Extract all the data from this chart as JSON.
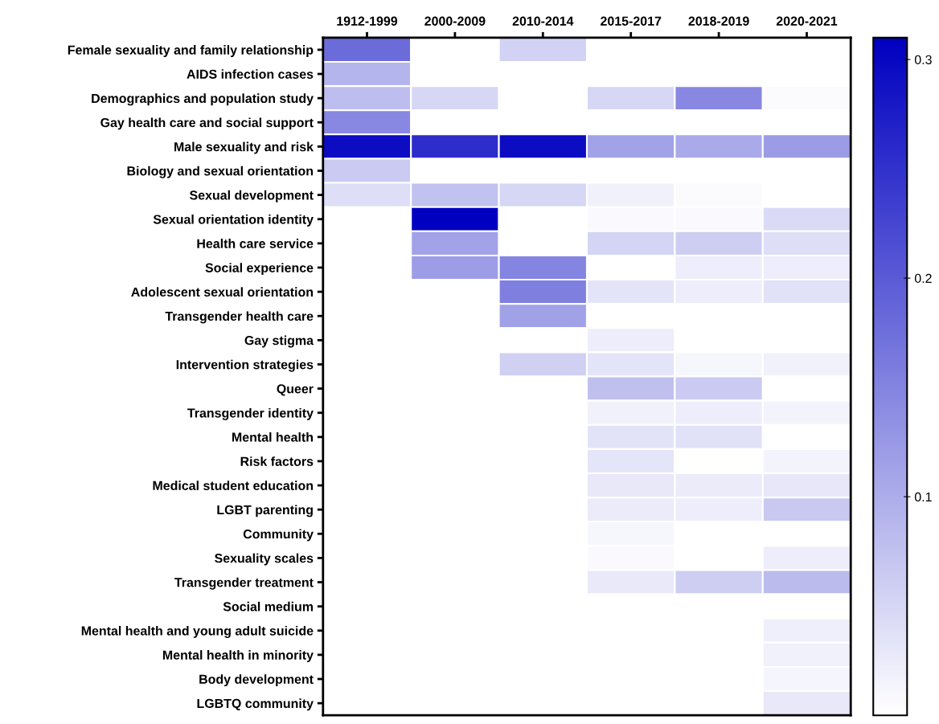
{
  "chart_data": {
    "type": "heatmap",
    "categories": [
      "1912-1999",
      "2000-2009",
      "2010-2014",
      "2015-2017",
      "2018-2019",
      "2020-2021"
    ],
    "y_categories": [
      "Female sexuality and family relationship",
      "AIDS infection cases",
      "Demographics and population study",
      "Gay health care and social support",
      "Male sexuality and risk",
      "Biology and sexual orientation",
      "Sexual development",
      "Sexual orientation identity",
      "Health care service",
      "Social experience",
      "Adolescent sexual orientation",
      "Transgender health care",
      "Gay stigma",
      "Intervention strategies",
      "Queer",
      "Transgender identity",
      "Mental health",
      "Risk factors",
      "Medical student education",
      "LGBT parenting",
      "Community",
      "Sexuality scales",
      "Transgender treatment",
      "Social medium",
      "Mental health and young adult suicide",
      "Mental health in minority",
      "Body development",
      "LGBTQ community"
    ],
    "cells": [
      [
        0.18,
        0,
        0.055,
        0,
        0,
        0
      ],
      [
        0.09,
        0,
        0,
        0,
        0,
        0
      ],
      [
        0.08,
        0.05,
        0,
        0.05,
        0.145,
        0.005
      ],
      [
        0.145,
        0,
        0,
        0,
        0,
        0
      ],
      [
        0.295,
        0.255,
        0.295,
        0.113,
        0.104,
        0.122
      ],
      [
        0.065,
        0,
        0,
        0,
        0,
        0
      ],
      [
        0.04,
        0.075,
        0.05,
        0.018,
        0.005,
        0
      ],
      [
        0,
        0.31,
        0,
        0.008,
        0.007,
        0.045
      ],
      [
        0,
        0.113,
        0,
        0.053,
        0.06,
        0.04
      ],
      [
        0,
        0.12,
        0.15,
        0,
        0.022,
        0.022
      ],
      [
        0,
        0,
        0.155,
        0.033,
        0.022,
        0.037
      ],
      [
        0,
        0,
        0.115,
        0,
        0,
        0
      ],
      [
        0,
        0,
        0,
        0.022,
        0,
        0
      ],
      [
        0,
        0,
        0.057,
        0.033,
        0.012,
        0.018
      ],
      [
        0,
        0,
        0,
        0.077,
        0.065,
        0
      ],
      [
        0,
        0,
        0,
        0.018,
        0.022,
        0.015
      ],
      [
        0,
        0,
        0,
        0.035,
        0.037,
        0
      ],
      [
        0,
        0,
        0,
        0.032,
        0,
        0.015
      ],
      [
        0,
        0,
        0,
        0.028,
        0.025,
        0.03
      ],
      [
        0,
        0,
        0,
        0.025,
        0.022,
        0.067
      ],
      [
        0,
        0,
        0,
        0.012,
        0,
        0
      ],
      [
        0,
        0,
        0,
        0.007,
        0,
        0.022
      ],
      [
        0,
        0,
        0,
        0.027,
        0.06,
        0.083
      ],
      [
        0,
        0,
        0,
        0,
        0,
        0
      ],
      [
        0,
        0,
        0,
        0,
        0,
        0.02
      ],
      [
        0,
        0,
        0,
        0,
        0,
        0.018
      ],
      [
        0,
        0,
        0,
        0,
        0,
        0.013
      ],
      [
        0,
        0,
        0,
        0,
        0,
        0.028
      ]
    ],
    "clim": [
      0,
      0.31
    ],
    "cticks": [
      0.1,
      0.2,
      0.3
    ]
  }
}
